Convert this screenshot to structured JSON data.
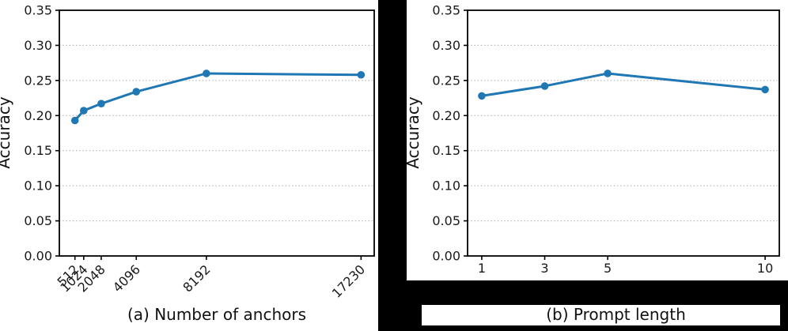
{
  "figure": {
    "background": "#ffffff",
    "mask_color": "#000000",
    "line_color": "#1f77b4",
    "grid_color": "#aaaaaa",
    "spine_color": "#000000",
    "tick_label_color": "#1a1a1a"
  },
  "chart_data": [
    {
      "type": "line",
      "caption": "(a) Number of anchors",
      "ylabel": "Accuracy",
      "x": [
        512,
        1024,
        2048,
        4096,
        8192,
        17230
      ],
      "xtick_labels": [
        "512",
        "1024",
        "2048",
        "4096",
        "8192",
        "17230"
      ],
      "xtick_rotation": 45,
      "values": [
        0.193,
        0.207,
        0.217,
        0.234,
        0.26,
        0.258
      ],
      "xlim": [
        -400,
        18000
      ],
      "ylim": [
        0,
        0.35
      ],
      "yticks": [
        0,
        0.05,
        0.1,
        0.15,
        0.2,
        0.25,
        0.3,
        0.35
      ],
      "ytick_labels": [
        "0.00",
        "0.05",
        "0.10",
        "0.15",
        "0.20",
        "0.25",
        "0.30",
        "0.35"
      ],
      "grid": "horizontal-dotted",
      "legend": "none"
    },
    {
      "type": "line",
      "caption": "(b) Prompt length",
      "ylabel": "Accuracy",
      "x": [
        1,
        3,
        5,
        10
      ],
      "xtick_labels": [
        "1",
        "3",
        "5",
        "10"
      ],
      "xtick_rotation": 0,
      "values": [
        0.228,
        0.242,
        0.26,
        0.237
      ],
      "xlim": [
        0.55,
        10.45
      ],
      "ylim": [
        0,
        0.35
      ],
      "yticks": [
        0,
        0.05,
        0.1,
        0.15,
        0.2,
        0.25,
        0.3,
        0.35
      ],
      "ytick_labels": [
        "0.00",
        "0.05",
        "0.10",
        "0.15",
        "0.20",
        "0.25",
        "0.30",
        "0.35"
      ],
      "grid": "horizontal-dotted",
      "legend": "none"
    }
  ]
}
